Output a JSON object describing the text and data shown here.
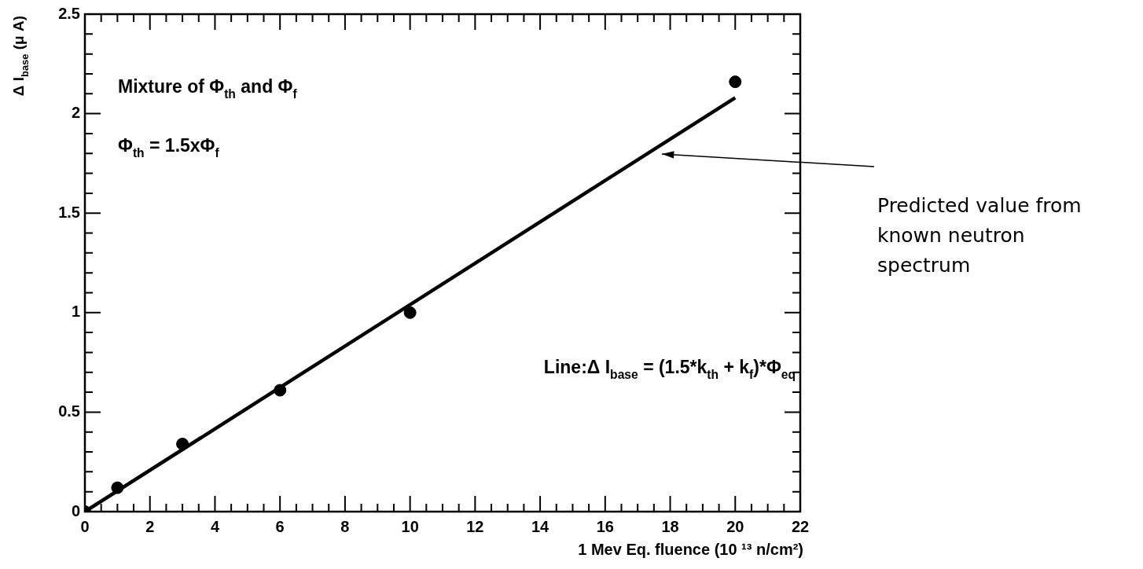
{
  "chart_data": {
    "type": "scatter",
    "xlabel": "1 Mev Eq. fluence (10 ¹³ n/cm²)",
    "ylabel": "Δ I$_{base}$ (μ A)",
    "series": [
      {
        "type": "scatter",
        "color": "#000000",
        "marker": "circle",
        "x": [
          0,
          1,
          3,
          6,
          10,
          20
        ],
        "values": [
          0,
          0.12,
          0.34,
          0.61,
          1.0,
          2.16
        ]
      },
      {
        "type": "line",
        "color": "#000000",
        "marker": "none",
        "x": [
          0,
          20
        ],
        "values": [
          0,
          2.08
        ]
      }
    ],
    "xlim": [
      0,
      22
    ],
    "ylim": [
      0,
      2.5
    ],
    "xticks": [
      0,
      {
        "value": 0.5,
        "label": null
      },
      {
        "value": 1,
        "label": null
      },
      {
        "value": 1.5,
        "label": null
      },
      2,
      {
        "value": 2.5,
        "label": null
      },
      {
        "value": 3,
        "label": null
      },
      {
        "value": 3.5,
        "label": null
      },
      4,
      {
        "value": 4.5,
        "label": null
      },
      {
        "value": 5,
        "label": null
      },
      {
        "value": 5.5,
        "label": null
      },
      6,
      {
        "value": 6.5,
        "label": null
      },
      {
        "value": 7,
        "label": null
      },
      {
        "value": 7.5,
        "label": null
      },
      8,
      {
        "value": 8.5,
        "label": null
      },
      {
        "value": 9,
        "label": null
      },
      {
        "value": 9.5,
        "label": null
      },
      10,
      {
        "value": 10.5,
        "label": null
      },
      {
        "value": 11,
        "label": null
      },
      {
        "value": 11.5,
        "label": null
      },
      12,
      {
        "value": 12.5,
        "label": null
      },
      {
        "value": 13,
        "label": null
      },
      {
        "value": 13.5,
        "label": null
      },
      14,
      {
        "value": 14.5,
        "label": null
      },
      {
        "value": 15,
        "label": null
      },
      {
        "value": 15.5,
        "label": null
      },
      16,
      {
        "value": 16.5,
        "label": null
      },
      {
        "value": 17,
        "label": null
      },
      {
        "value": 17.5,
        "label": null
      },
      18,
      {
        "value": 18.5,
        "label": null
      },
      {
        "value": 19,
        "label": null
      },
      {
        "value": 19.5,
        "label": null
      },
      20,
      {
        "value": 20.5,
        "label": null
      },
      {
        "value": 21,
        "label": null
      },
      {
        "value": 21.5,
        "label": null
      },
      22
    ],
    "yticks": [
      0,
      {
        "value": 0.1,
        "label": null
      },
      {
        "value": 0.2,
        "label": null
      },
      {
        "value": 0.3,
        "label": null
      },
      {
        "value": 0.4,
        "label": null
      },
      0.5,
      {
        "value": 0.6,
        "label": null
      },
      {
        "value": 0.7,
        "label": null
      },
      {
        "value": 0.8,
        "label": null
      },
      {
        "value": 0.9,
        "label": null
      },
      1,
      {
        "value": 1.1,
        "label": null
      },
      {
        "value": 1.2,
        "label": null
      },
      {
        "value": 1.3,
        "label": null
      },
      {
        "value": 1.4,
        "label": null
      },
      1.5,
      {
        "value": 1.6,
        "label": null
      },
      {
        "value": 1.7,
        "label": null
      },
      {
        "value": 1.8,
        "label": null
      },
      {
        "value": 1.9,
        "label": null
      },
      2,
      {
        "value": 2.1,
        "label": null
      },
      {
        "value": 2.2,
        "label": null
      },
      {
        "value": 2.3,
        "label": null
      },
      {
        "value": 2.4,
        "label": null
      },
      2.5
    ],
    "annotations": [
      "Mixture of Φ$_{th}$ and Φ$_{f}$",
      "Φ$_{th}$ = 1.5xΦ$_{f}$",
      "Line:Δ I$_{base}$ = (1.5*k$_{th}$ + k$_{f}$)*Φ$_{eq}$",
      "Predicted value from\nknown neutron\nspectrum"
    ],
    "grid": false,
    "legend": false
  }
}
